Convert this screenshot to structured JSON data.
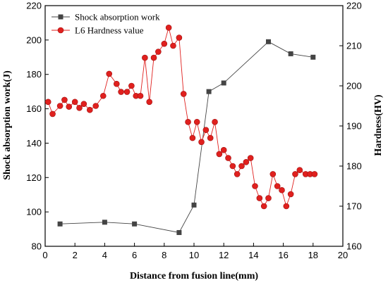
{
  "chart_data": {
    "type": "line",
    "xlabel": "Distance from fusion line(mm)",
    "ylabel_left": "Shock absorption work(J)",
    "ylabel_right": "Hardness(HV)",
    "xlim": [
      0,
      20
    ],
    "ylim_left": [
      80,
      220
    ],
    "ylim_right": [
      160,
      220
    ],
    "x_ticks": [
      0,
      2,
      4,
      6,
      8,
      10,
      12,
      14,
      16,
      18,
      20
    ],
    "y_left_ticks": [
      80,
      100,
      120,
      140,
      160,
      180,
      200,
      220
    ],
    "y_right_ticks": [
      160,
      170,
      180,
      190,
      200,
      210,
      220
    ],
    "grid": false,
    "legend_position": "top-left",
    "series": [
      {
        "name": "Shock absorption work",
        "axis": "left",
        "color": "#444444",
        "marker": "square",
        "x": [
          1,
          4,
          6,
          9,
          10,
          11,
          12,
          15,
          16.5,
          18
        ],
        "y": [
          93,
          94,
          93,
          88,
          104,
          170,
          175,
          199,
          192,
          190
        ]
      },
      {
        "name": "L6 Hardness value",
        "axis": "right",
        "color": "#e0201e",
        "marker": "circle",
        "x": [
          0.2,
          0.5,
          1.0,
          1.3,
          1.6,
          2.0,
          2.3,
          2.6,
          3.0,
          3.4,
          3.9,
          4.3,
          4.8,
          5.1,
          5.5,
          5.8,
          6.1,
          6.4,
          6.7,
          7.0,
          7.3,
          7.6,
          8.0,
          8.3,
          8.6,
          9.0,
          9.3,
          9.6,
          9.9,
          10.2,
          10.5,
          10.8,
          11.1,
          11.4,
          11.7,
          12.0,
          12.3,
          12.6,
          12.9,
          13.2,
          13.5,
          13.8,
          14.1,
          14.4,
          14.7,
          15.0,
          15.3,
          15.6,
          15.9,
          16.2,
          16.5,
          16.8,
          17.1,
          17.5,
          17.8,
          18.1
        ],
        "y": [
          196,
          193,
          195,
          196.5,
          194.8,
          196,
          194.5,
          195.5,
          194,
          195,
          197.5,
          203,
          200.5,
          198.5,
          198.5,
          200,
          197.5,
          197.5,
          207,
          196,
          207,
          208.5,
          210.5,
          214.5,
          210,
          212,
          198,
          191,
          187,
          191,
          186,
          189,
          187,
          191,
          183,
          184,
          182,
          180,
          178,
          180,
          181,
          182,
          175,
          172,
          170,
          172,
          178,
          175,
          174,
          170,
          173,
          178,
          179,
          178,
          178,
          178
        ]
      }
    ]
  }
}
